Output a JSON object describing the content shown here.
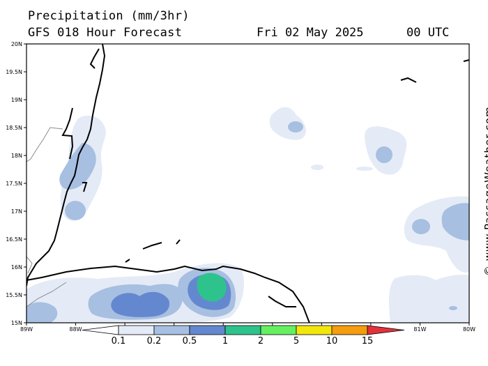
{
  "title": "Precipitation (mm/3hr)",
  "subtitle": "GFS 018 Hour Forecast",
  "valid_date": "Fri 02 May 2025",
  "valid_hour": "00 UTC",
  "credit": "© www.PassageWeather.com",
  "axes": {
    "lat_labels": [
      "20N",
      "19.5N",
      "19N",
      "18.5N",
      "18N",
      "17.5N",
      "17N",
      "16.5N",
      "16N",
      "15.5N",
      "15N"
    ],
    "lon_labels": [
      "89W",
      "88W",
      "87W",
      "86W",
      "85W",
      "84W",
      "83W",
      "82W",
      "81W",
      "80W"
    ]
  },
  "legend": {
    "thresholds": [
      "0.1",
      "0.2",
      "0.5",
      "1",
      "2",
      "5",
      "10",
      "15"
    ],
    "colors": [
      "#ffffff",
      "#e4ebf6",
      "#a7bfe1",
      "#6488cf",
      "#2ec38c",
      "#66f061",
      "#f3e60d",
      "#f59c0f",
      "#e2333b"
    ]
  },
  "map": {
    "region": "Western Caribbean Sea",
    "lat_range": [
      "15N",
      "20N"
    ],
    "lon_range": [
      "89W",
      "80W"
    ]
  }
}
